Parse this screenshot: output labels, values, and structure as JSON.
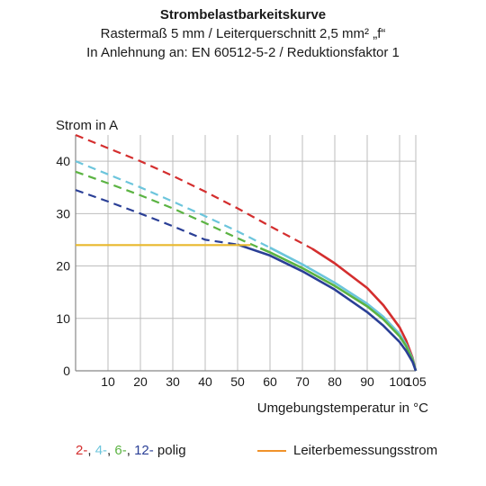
{
  "chart_data": {
    "type": "line",
    "title": "Strombelastbarkeitskurve",
    "subtitle_lines": [
      "Rastermaß 5 mm / Leiterquerschnitt 2,5 mm² „f“",
      "In Anlehnung an: EN 60512-5-2 / Reduktionsfaktor 1"
    ],
    "ylabel": "Strom in A",
    "xlabel": "Umgebungstemperatur in °C",
    "xlim": [
      0,
      105
    ],
    "ylim": [
      0,
      45
    ],
    "x_ticks": [
      "10",
      "20",
      "30",
      "40",
      "50",
      "60",
      "70",
      "80",
      "90",
      "100",
      "105"
    ],
    "x_tick_values": [
      10,
      20,
      30,
      40,
      50,
      60,
      70,
      80,
      90,
      100,
      105
    ],
    "y_ticks": [
      "0",
      "10",
      "20",
      "30",
      "40"
    ],
    "y_tick_values": [
      0,
      10,
      20,
      30,
      40
    ],
    "grid": true,
    "series": [
      {
        "id": "2-polig",
        "color": "#d42e2e",
        "dashed_until_x": 73,
        "x": [
          0,
          10,
          20,
          30,
          40,
          50,
          60,
          70,
          73,
          80,
          90,
          95,
          100,
          102,
          104,
          105
        ],
        "y": [
          45,
          42.5,
          40,
          37.2,
          34.2,
          31,
          27.6,
          24.3,
          23.3,
          20.5,
          15.8,
          12.5,
          8.3,
          5.8,
          2.5,
          0
        ]
      },
      {
        "id": "4-polig",
        "color": "#6cc5dc",
        "dashed_until_x": 60,
        "x": [
          0,
          10,
          20,
          30,
          40,
          50,
          60,
          70,
          80,
          90,
          95,
          100,
          102,
          104,
          105
        ],
        "y": [
          40,
          37.5,
          35,
          32.3,
          29.5,
          26.6,
          23.5,
          20.3,
          16.8,
          12.8,
          10.3,
          7,
          5,
          2.3,
          0
        ]
      },
      {
        "id": "6-polig",
        "color": "#5bb342",
        "dashed_until_x": 57,
        "x": [
          0,
          10,
          20,
          30,
          40,
          50,
          57,
          60,
          70,
          80,
          90,
          95,
          100,
          102,
          104,
          105
        ],
        "y": [
          38,
          35.8,
          33.5,
          31,
          28.2,
          25.3,
          23.4,
          22.6,
          19.6,
          16.2,
          12.3,
          9.8,
          6.6,
          4.7,
          2.1,
          0
        ]
      },
      {
        "id": "12-polig",
        "color": "#2a3f96",
        "dashed_until_x": 50,
        "x": [
          0,
          10,
          20,
          30,
          40,
          50,
          60,
          70,
          80,
          90,
          95,
          100,
          102,
          104,
          105
        ],
        "y": [
          34.5,
          32.3,
          30,
          27.6,
          25,
          24.1,
          22,
          19,
          15.5,
          11.2,
          8.6,
          5.5,
          3.8,
          1.7,
          0
        ]
      },
      {
        "id": "Leiterbemessungsstrom",
        "color": "#e9b92d",
        "dashed_until_x": null,
        "x": [
          0,
          54
        ],
        "y": [
          24,
          24
        ]
      }
    ],
    "legend": {
      "polig_parts": [
        {
          "text": "2-",
          "color": "#d42e2e"
        },
        {
          "text": ", ",
          "color": "#1a1a1a"
        },
        {
          "text": "4-",
          "color": "#6cc5dc"
        },
        {
          "text": ", ",
          "color": "#1a1a1a"
        },
        {
          "text": "6-",
          "color": "#5bb342"
        },
        {
          "text": ", ",
          "color": "#1a1a1a"
        },
        {
          "text": "12-",
          "color": "#2a3f96"
        },
        {
          "text": " polig",
          "color": "#1a1a1a"
        }
      ],
      "rated_label": "Leiterbemessungsstrom",
      "rated_color": "#f0922a"
    },
    "grid_color": "#bdbdbd",
    "axis_color": "#888888"
  }
}
